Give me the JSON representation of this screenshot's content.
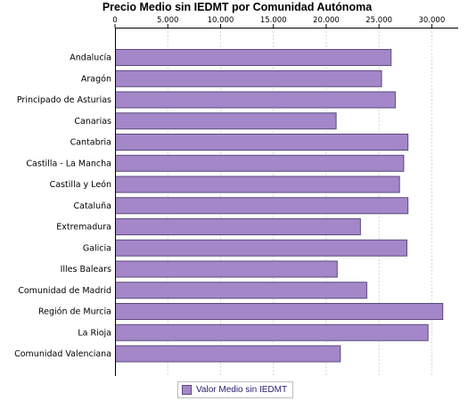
{
  "chart_data": {
    "type": "bar",
    "orientation": "horizontal",
    "title": "Precio Medio sin IEDMT por Comunidad Autónoma",
    "categories": [
      "Andalucía",
      "Aragón",
      "Principado de Asturias",
      "Canarias",
      "Cantabria",
      "Castilla - La Mancha",
      "Castilla y León",
      "Cataluña",
      "Extremadura",
      "Galicia",
      "Illes Balears",
      "Comunidad de Madrid",
      "Región de Murcia",
      "La Rioja",
      "Comunidad Valenciana"
    ],
    "series": [
      {
        "name": "Valor Medio sin IEDMT",
        "values": [
          26100,
          25200,
          26500,
          20900,
          27700,
          27300,
          26900,
          27700,
          23200,
          27600,
          21000,
          23800,
          31000,
          29600,
          21300
        ]
      }
    ],
    "x_ticks": [
      "0",
      "5.000",
      "10.000",
      "15.000",
      "20.000",
      "25.000",
      "30.000"
    ],
    "xlim": [
      0,
      32500
    ],
    "grid": true,
    "legend": "bottom",
    "bar_color": "#a487c9",
    "bar_stroke": "#5a4a7a"
  }
}
